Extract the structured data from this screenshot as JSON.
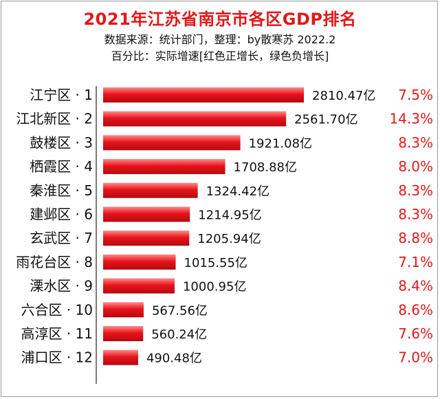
{
  "chart_data": {
    "type": "bar",
    "orientation": "horizontal",
    "title": "2021年江苏省南京市各区GDP排名",
    "subtitle_lines": [
      "数据来源：统计部门，整理：by散寒苏 2022.2",
      "百分比：实际增速[红色正增长，绿色负增长]"
    ],
    "unit_suffix": "亿",
    "categories": [
      "江宁区 · 1",
      "江北新区 · 2",
      "鼓楼区 · 3",
      "栖霞区 · 4",
      "秦淮区 · 5",
      "建邺区 · 6",
      "玄武区 · 7",
      "雨花台区 · 8",
      "溧水区 · 9",
      "六合区 · 10",
      "高淳区 · 11",
      "浦口区 · 12"
    ],
    "value_labels": [
      "2810.47亿",
      "2561.70亿",
      "1921.08亿",
      "1708.88亿",
      "1324.42亿",
      "1214.95亿",
      "1205.94亿",
      "1015.55亿",
      "1000.95亿",
      "567.56亿",
      "560.24亿",
      "490.48亿"
    ],
    "values": [
      2810.47,
      2561.7,
      1921.08,
      1708.88,
      1324.42,
      1214.95,
      1205.94,
      1015.55,
      1000.95,
      567.56,
      560.24,
      490.48
    ],
    "growth": [
      "7.5%",
      "14.3%",
      "8.3%",
      "8.0%",
      "8.3%",
      "8.3%",
      "8.8%",
      "7.1%",
      "8.4%",
      "8.6%",
      "7.6%",
      "7.0%"
    ],
    "bar_color": "#e8141c",
    "growth_color": "#e01818",
    "xlim": [
      0,
      2810.47
    ],
    "grid": false
  }
}
